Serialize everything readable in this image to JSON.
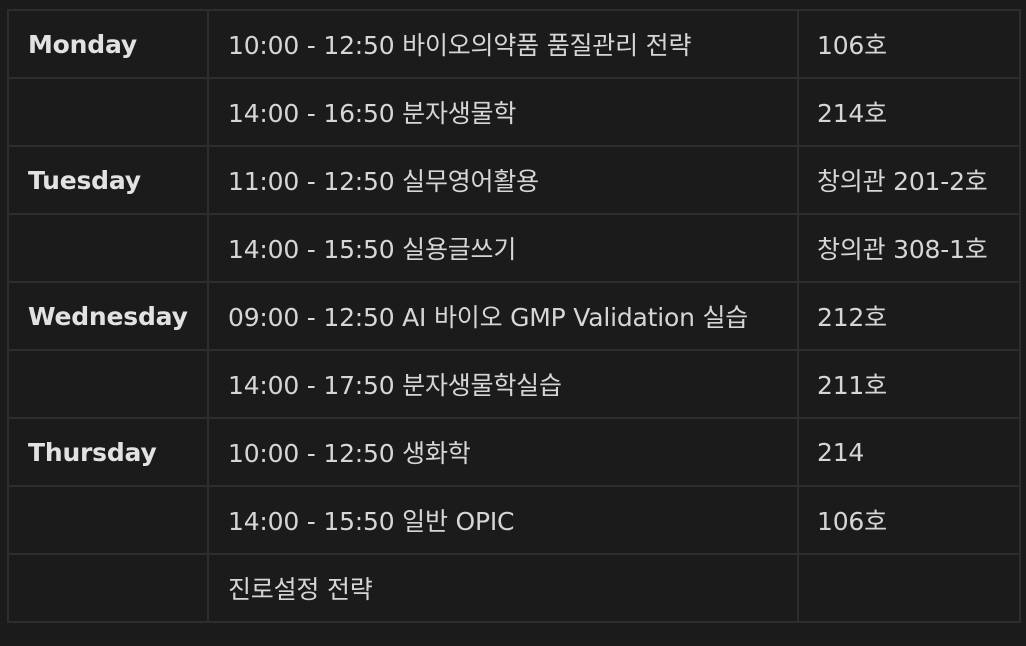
{
  "schedule": {
    "rows": [
      {
        "day": "Monday",
        "class": "10:00 - 12:50 바이오의약품 품질관리 전략",
        "room": "106호"
      },
      {
        "day": "",
        "class": "14:00 - 16:50 분자생물학",
        "room": "214호"
      },
      {
        "day": "Tuesday",
        "class": "11:00 - 12:50 실무영어활용",
        "room": "창의관 201-2호"
      },
      {
        "day": "",
        "class": "14:00 - 15:50 실용글쓰기",
        "room": "창의관 308-1호"
      },
      {
        "day": "Wednesday",
        "class": "09:00 - 12:50 AI 바이오 GMP Validation 실습",
        "room": "212호"
      },
      {
        "day": "",
        "class": "14:00 - 17:50 분자생물학실습",
        "room": "211호"
      },
      {
        "day": "Thursday",
        "class": "10:00 - 12:50 생화학",
        "room": "214"
      },
      {
        "day": "",
        "class": "14:00 - 15:50 일반 OPIC",
        "room": "106호"
      },
      {
        "day": "",
        "class": "진로설정 전략",
        "room": ""
      }
    ]
  }
}
